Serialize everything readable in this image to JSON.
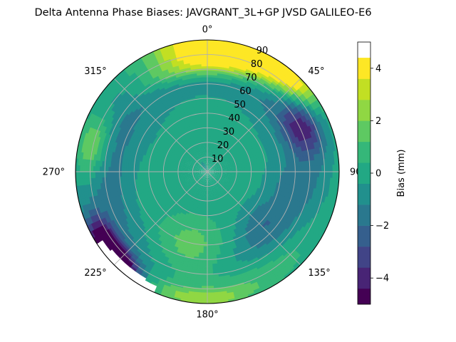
{
  "chart_data": {
    "type": "polar-contour",
    "title": "Delta Antenna Phase Biases: JAVGRANT_3L+GP  JVSD GALILEO-E6",
    "angular_axis": {
      "zero_location": "top",
      "direction": "clockwise",
      "tick_labels": [
        "0°",
        "45°",
        "90",
        "135°",
        "180°",
        "225°",
        "270°",
        "315°"
      ],
      "tick_values_deg": [
        0,
        45,
        90,
        135,
        180,
        225,
        270,
        315
      ]
    },
    "radial_axis": {
      "quantity": "zenith angle (deg)",
      "range": [
        0,
        90
      ],
      "ticks": [
        10,
        20,
        30,
        40,
        50,
        60,
        70,
        80,
        90
      ],
      "tick_labels": [
        "10",
        "20",
        "30",
        "40",
        "50",
        "60",
        "70",
        "80",
        "90"
      ],
      "label_angle_deg": 22.5
    },
    "colorbar": {
      "label": "Bias (mm)",
      "range": [
        -5,
        5
      ],
      "ticks": [
        -4,
        -2,
        0,
        2,
        4
      ],
      "tick_labels": [
        "−4",
        "−2",
        "0",
        "2",
        "4"
      ],
      "levels": [
        -5,
        -4.4,
        -3.6,
        -2.8,
        -2,
        -1.2,
        -0.4,
        0.4,
        1.2,
        2,
        2.8,
        3.6,
        4.4,
        5
      ],
      "colors": [
        "#440154",
        "#482475",
        "#414487",
        "#355f8d",
        "#2a788e",
        "#21908d",
        "#22a884",
        "#35b779",
        "#5ec962",
        "#90d743",
        "#c2df23",
        "#fde725"
      ]
    },
    "field": {
      "background_value": -0.1,
      "components": [
        {
          "name": "outer-ring",
          "az": 0,
          "zen": 70,
          "sig_az": 180,
          "sig_zen": 12,
          "amp": -1.6,
          "ring": true
        },
        {
          "name": "north-rim-high",
          "az": 8,
          "zen": 86,
          "sig_az": 22,
          "sig_zen": 9,
          "amp": 7.2
        },
        {
          "name": "north-band",
          "az": 0,
          "zen": 72,
          "sig_az": 30,
          "sig_zen": 6,
          "amp": 3.0
        },
        {
          "name": "northeast-high",
          "az": 40,
          "zen": 85,
          "sig_az": 14,
          "sig_zen": 7,
          "amp": 4.0
        },
        {
          "name": "east-low",
          "az": 65,
          "zen": 72,
          "sig_az": 10,
          "sig_zen": 9,
          "amp": -3.0
        },
        {
          "name": "west-high",
          "az": 283,
          "zen": 80,
          "sig_az": 12,
          "sig_zen": 8,
          "amp": 3.2
        },
        {
          "name": "southwest-low",
          "az": 226,
          "zen": 86,
          "sig_az": 9,
          "sig_zen": 6,
          "amp": -6.5
        },
        {
          "name": "southwest-low-2",
          "az": 238,
          "zen": 84,
          "sig_az": 8,
          "sig_zen": 6,
          "amp": -3.5
        },
        {
          "name": "south-high",
          "az": 192,
          "zen": 58,
          "sig_az": 20,
          "sig_zen": 18,
          "amp": 2.4
        },
        {
          "name": "southeast-high",
          "az": 150,
          "zen": 78,
          "sig_az": 25,
          "sig_zen": 10,
          "amp": 2.2
        },
        {
          "name": "south-rim",
          "az": 182,
          "zen": 87,
          "sig_az": 16,
          "sig_zen": 5,
          "amp": 2.2
        },
        {
          "name": "southeast-low",
          "az": 132,
          "zen": 50,
          "sig_az": 15,
          "sig_zen": 10,
          "amp": -1.6
        },
        {
          "name": "east-mid-low",
          "az": 100,
          "zen": 55,
          "sig_az": 12,
          "sig_zen": 10,
          "amp": -0.9
        },
        {
          "name": "center-low",
          "az": 0,
          "zen": 0,
          "sig_az": 180,
          "sig_zen": 18,
          "amp": -0.3
        }
      ]
    },
    "blank_region": {
      "description": "unsampled area",
      "az_range": [
        205,
        236
      ],
      "zen_min": 84
    }
  }
}
